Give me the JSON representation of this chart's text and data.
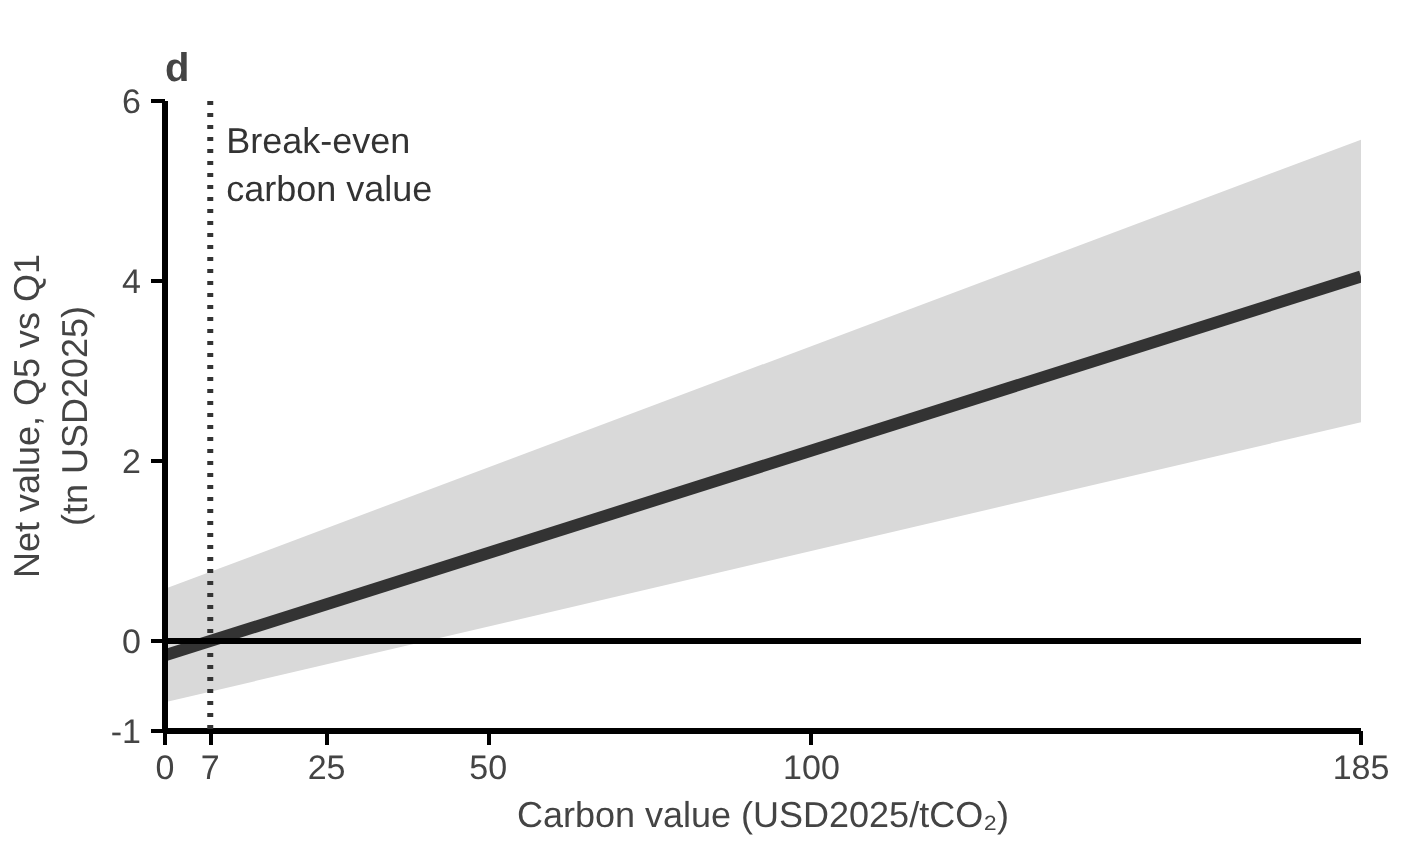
{
  "chart_data": {
    "type": "line",
    "title": "d",
    "xlabel": "Carbon value (USD2025/tCO₂)",
    "ylabel": "Net value, Q5 vs Q1\n(tn USD2025)",
    "series": [
      {
        "color": "#333333",
        "x": [
          0,
          185
        ],
        "values": [
          -0.16,
          4.05
        ],
        "lower": [
          -0.68,
          2.43
        ],
        "upper": [
          0.58,
          5.57
        ]
      }
    ],
    "xlim": [
      0,
      185
    ],
    "xticks": [
      0,
      7,
      25,
      50,
      100,
      185
    ],
    "ylim": [
      -1,
      6
    ],
    "yticks": [
      -1,
      0,
      2,
      4,
      6
    ],
    "ref_lines": [
      {
        "axis": "x",
        "value": 7,
        "label": "Break-even\ncarbon value",
        "line_style": "dotted",
        "color": "#333333"
      },
      {
        "axis": "y",
        "value": 0,
        "label": null,
        "line_style": "solid",
        "color": "#000000"
      }
    ],
    "grid": false
  }
}
